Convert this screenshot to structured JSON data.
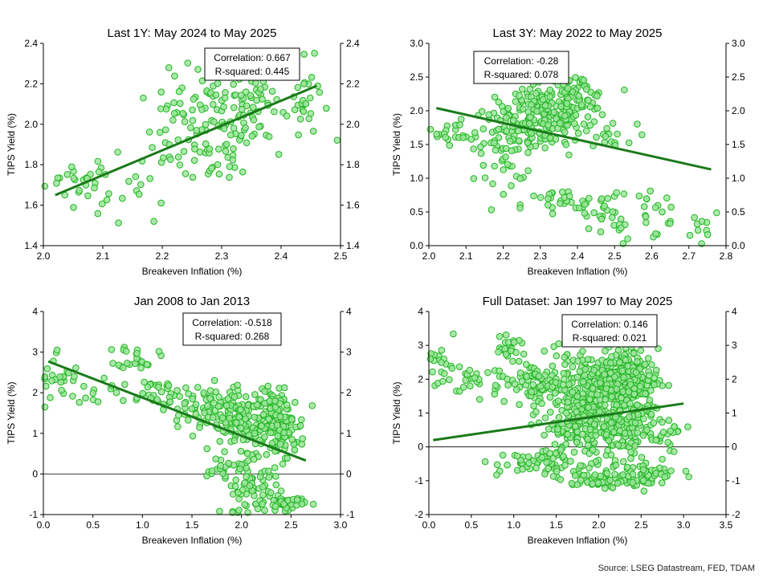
{
  "source": "Source: LSEG Datastream, FED, TDAM",
  "colors": {
    "point_fill": "#9be59b",
    "point_stroke": "#22b522",
    "trend": "#1a7a1a",
    "axis": "#000000",
    "zero_line": "#000000"
  },
  "chart_data": [
    {
      "type": "scatter",
      "title": "Last 1Y: May 2024 to May 2025",
      "xlabel": "Breakeven Inflation (%)",
      "ylabel": "TIPS Yield (%)",
      "xlim": [
        2.0,
        2.5
      ],
      "ylim": [
        1.4,
        2.4
      ],
      "xticks": [
        "2.0",
        "2.1",
        "2.2",
        "2.3",
        "2.4",
        "2.5"
      ],
      "xtick_values": [
        2.0,
        2.1,
        2.2,
        2.3,
        2.4,
        2.5
      ],
      "yticks": [
        "1.4",
        "1.6",
        "1.8",
        "2.0",
        "2.2",
        "2.4"
      ],
      "ytick_values": [
        1.4,
        1.6,
        1.8,
        2.0,
        2.2,
        2.4
      ],
      "stats": {
        "correlation": "Correlation: 0.667",
        "r_squared": "R-squared: 0.445"
      },
      "trend": {
        "x": [
          2.02,
          2.46
        ],
        "y": [
          1.65,
          2.19
        ]
      },
      "zero_line": false,
      "clusters": [
        {
          "cx": 2.06,
          "cy": 1.72,
          "sx": 0.03,
          "sy": 0.05,
          "n": 20
        },
        {
          "cx": 2.14,
          "cy": 1.68,
          "sx": 0.04,
          "sy": 0.09,
          "n": 22
        },
        {
          "cx": 2.23,
          "cy": 1.98,
          "sx": 0.03,
          "sy": 0.12,
          "n": 35
        },
        {
          "cx": 2.29,
          "cy": 2.02,
          "sx": 0.04,
          "sy": 0.13,
          "n": 70
        },
        {
          "cx": 2.36,
          "cy": 2.1,
          "sx": 0.04,
          "sy": 0.12,
          "n": 45
        },
        {
          "cx": 2.44,
          "cy": 2.12,
          "sx": 0.02,
          "sy": 0.1,
          "n": 25
        },
        {
          "cx": 2.28,
          "cy": 1.77,
          "sx": 0.02,
          "sy": 0.02,
          "n": 10
        }
      ]
    },
    {
      "type": "scatter",
      "title": "Last 3Y: May 2022 to May 2025",
      "xlabel": "Breakeven Inflation (%)",
      "ylabel": "TIPS Yield (%)",
      "xlim": [
        2.0,
        2.8
      ],
      "ylim": [
        0.0,
        3.0
      ],
      "xticks": [
        "2.0",
        "2.1",
        "2.2",
        "2.3",
        "2.4",
        "2.5",
        "2.6",
        "2.7",
        "2.8"
      ],
      "xtick_values": [
        2.0,
        2.1,
        2.2,
        2.3,
        2.4,
        2.5,
        2.6,
        2.7,
        2.8
      ],
      "yticks": [
        "0.0",
        "0.5",
        "1.0",
        "1.5",
        "2.0",
        "2.5",
        "3.0"
      ],
      "ytick_values": [
        0.0,
        0.5,
        1.0,
        1.5,
        2.0,
        2.5,
        3.0
      ],
      "stats": {
        "correlation": "Correlation: -0.28",
        "r_squared": "R-squared: 0.078"
      },
      "trend": {
        "x": [
          2.02,
          2.76
        ],
        "y": [
          2.04,
          1.13
        ]
      },
      "zero_line": false,
      "clusters": [
        {
          "cx": 2.08,
          "cy": 1.7,
          "sx": 0.04,
          "sy": 0.1,
          "n": 25
        },
        {
          "cx": 2.22,
          "cy": 1.55,
          "sx": 0.05,
          "sy": 0.3,
          "n": 90
        },
        {
          "cx": 2.32,
          "cy": 1.95,
          "sx": 0.05,
          "sy": 0.25,
          "n": 150
        },
        {
          "cx": 2.4,
          "cy": 2.15,
          "sx": 0.04,
          "sy": 0.2,
          "n": 70
        },
        {
          "cx": 2.48,
          "cy": 1.6,
          "sx": 0.04,
          "sy": 0.1,
          "n": 15
        },
        {
          "cx": 2.35,
          "cy": 0.6,
          "sx": 0.05,
          "sy": 0.12,
          "n": 25
        },
        {
          "cx": 2.48,
          "cy": 0.45,
          "sx": 0.06,
          "sy": 0.25,
          "n": 30
        },
        {
          "cx": 2.62,
          "cy": 0.5,
          "sx": 0.06,
          "sy": 0.25,
          "n": 22
        },
        {
          "cx": 2.74,
          "cy": 0.35,
          "sx": 0.03,
          "sy": 0.15,
          "n": 8
        }
      ]
    },
    {
      "type": "scatter",
      "title": "Jan 2008 to Jan 2013",
      "xlabel": "Breakeven Inflation (%)",
      "ylabel": "TIPS Yield (%)",
      "xlim": [
        0.0,
        3.0
      ],
      "ylim": [
        -1,
        4
      ],
      "xticks": [
        "0.0",
        "0.5",
        "1.0",
        "1.5",
        "2.0",
        "2.5",
        "3.0"
      ],
      "xtick_values": [
        0.0,
        0.5,
        1.0,
        1.5,
        2.0,
        2.5,
        3.0
      ],
      "yticks": [
        "-1",
        "0",
        "1",
        "2",
        "3",
        "4"
      ],
      "ytick_values": [
        -1,
        0,
        1,
        2,
        3,
        4
      ],
      "stats": {
        "correlation": "Correlation: -0.518",
        "r_squared": "R-squared: 0.268"
      },
      "trend": {
        "x": [
          0.05,
          2.65
        ],
        "y": [
          2.77,
          0.33
        ]
      },
      "zero_line": true,
      "clusters": [
        {
          "cx": 0.15,
          "cy": 2.3,
          "sx": 0.12,
          "sy": 0.4,
          "n": 25
        },
        {
          "cx": 0.5,
          "cy": 2.0,
          "sx": 0.2,
          "sy": 0.2,
          "n": 15
        },
        {
          "cx": 0.95,
          "cy": 2.9,
          "sx": 0.1,
          "sy": 0.15,
          "n": 25
        },
        {
          "cx": 1.1,
          "cy": 2.0,
          "sx": 0.15,
          "sy": 0.2,
          "n": 25
        },
        {
          "cx": 1.6,
          "cy": 1.6,
          "sx": 0.2,
          "sy": 0.3,
          "n": 80
        },
        {
          "cx": 2.1,
          "cy": 1.2,
          "sx": 0.2,
          "sy": 0.45,
          "n": 140
        },
        {
          "cx": 2.4,
          "cy": 1.2,
          "sx": 0.12,
          "sy": 0.4,
          "n": 110
        },
        {
          "cx": 2.1,
          "cy": -0.4,
          "sx": 0.15,
          "sy": 0.3,
          "n": 60
        },
        {
          "cx": 2.45,
          "cy": -0.72,
          "sx": 0.1,
          "sy": 0.08,
          "n": 40
        },
        {
          "cx": 1.85,
          "cy": 0.1,
          "sx": 0.1,
          "sy": 0.12,
          "n": 20
        }
      ]
    },
    {
      "type": "scatter",
      "title": "Full Dataset: Jan 1997 to May 2025",
      "xlabel": "Breakeven Inflation (%)",
      "ylabel": "TIPS Yield (%)",
      "xlim": [
        0.0,
        3.5
      ],
      "ylim": [
        -2,
        4
      ],
      "xticks": [
        "0.0",
        "0.5",
        "1.0",
        "1.5",
        "2.0",
        "2.5",
        "3.0",
        "3.5"
      ],
      "xtick_values": [
        0.0,
        0.5,
        1.0,
        1.5,
        2.0,
        2.5,
        3.0,
        3.5
      ],
      "yticks": [
        "-2",
        "-1",
        "0",
        "1",
        "2",
        "3",
        "4"
      ],
      "ytick_values": [
        -2,
        -1,
        0,
        1,
        2,
        3,
        4
      ],
      "stats": {
        "correlation": "Correlation: 0.146",
        "r_squared": "R-squared: 0.021"
      },
      "trend": {
        "x": [
          0.05,
          3.0
        ],
        "y": [
          0.2,
          1.28
        ]
      },
      "zero_line": true,
      "clusters": [
        {
          "cx": 0.15,
          "cy": 2.3,
          "sx": 0.12,
          "sy": 0.4,
          "n": 25
        },
        {
          "cx": 0.6,
          "cy": 2.0,
          "sx": 0.2,
          "sy": 0.25,
          "n": 20
        },
        {
          "cx": 0.95,
          "cy": 2.9,
          "sx": 0.1,
          "sy": 0.15,
          "n": 25
        },
        {
          "cx": 1.3,
          "cy": 1.8,
          "sx": 0.2,
          "sy": 0.4,
          "n": 80
        },
        {
          "cx": 1.9,
          "cy": 1.8,
          "sx": 0.25,
          "sy": 0.5,
          "n": 180
        },
        {
          "cx": 2.3,
          "cy": 2.0,
          "sx": 0.2,
          "sy": 0.45,
          "n": 200
        },
        {
          "cx": 1.9,
          "cy": 0.5,
          "sx": 0.3,
          "sy": 0.4,
          "n": 150
        },
        {
          "cx": 2.3,
          "cy": 0.8,
          "sx": 0.2,
          "sy": 0.5,
          "n": 120
        },
        {
          "cx": 1.4,
          "cy": -0.5,
          "sx": 0.3,
          "sy": 0.2,
          "n": 60
        },
        {
          "cx": 2.0,
          "cy": -1.0,
          "sx": 0.3,
          "sy": 0.1,
          "n": 60
        },
        {
          "cx": 2.5,
          "cy": -0.8,
          "sx": 0.2,
          "sy": 0.2,
          "n": 50
        },
        {
          "cx": 2.8,
          "cy": 0.3,
          "sx": 0.1,
          "sy": 0.4,
          "n": 20
        }
      ]
    }
  ]
}
